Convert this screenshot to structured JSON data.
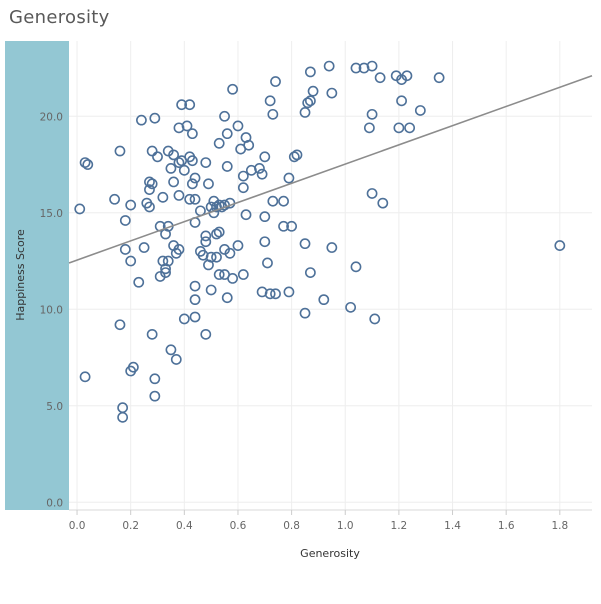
{
  "chart_title": "Generosity",
  "chart_data": {
    "type": "scatter",
    "title": "Generosity",
    "xlabel": "Generosity",
    "ylabel": "Happiness Score",
    "xlim": [
      -0.03,
      1.92
    ],
    "ylim": [
      -0.4,
      23.9
    ],
    "x_ticks": [
      0.0,
      0.2,
      0.4,
      0.6,
      0.8,
      1.0,
      1.2,
      1.4,
      1.6,
      1.8
    ],
    "x_tick_labels": [
      "0.0",
      "0.2",
      "0.4",
      "0.6",
      "0.8",
      "1.0",
      "1.2",
      "1.4",
      "1.6",
      "1.8"
    ],
    "y_ticks": [
      0,
      5,
      10,
      15,
      20
    ],
    "y_tick_labels": [
      "0.0",
      "5.0",
      "10.0",
      "15.0",
      "20.0"
    ],
    "grid": true,
    "point_color": "#4e7199",
    "trend_color": "#8c8c8c",
    "y_axis_band_color": "#93c7d3",
    "trendline": {
      "start": [
        -0.03,
        12.4
      ],
      "end": [
        1.92,
        22.1
      ]
    },
    "points": [
      [
        0.94,
        22.6
      ],
      [
        1.04,
        22.5
      ],
      [
        1.07,
        22.5
      ],
      [
        1.1,
        22.6
      ],
      [
        0.87,
        22.3
      ],
      [
        1.19,
        22.1
      ],
      [
        1.21,
        21.9
      ],
      [
        1.23,
        22.1
      ],
      [
        1.35,
        22.0
      ],
      [
        1.13,
        22.0
      ],
      [
        0.74,
        21.8
      ],
      [
        0.58,
        21.4
      ],
      [
        0.88,
        21.3
      ],
      [
        0.95,
        21.2
      ],
      [
        0.72,
        20.8
      ],
      [
        0.86,
        20.7
      ],
      [
        0.87,
        20.8
      ],
      [
        1.21,
        20.8
      ],
      [
        0.39,
        20.6
      ],
      [
        0.42,
        20.6
      ],
      [
        0.85,
        20.2
      ],
      [
        0.73,
        20.1
      ],
      [
        1.1,
        20.1
      ],
      [
        1.28,
        20.3
      ],
      [
        0.24,
        19.8
      ],
      [
        0.29,
        19.9
      ],
      [
        0.55,
        20.0
      ],
      [
        0.41,
        19.5
      ],
      [
        0.38,
        19.4
      ],
      [
        0.6,
        19.5
      ],
      [
        0.43,
        19.1
      ],
      [
        0.56,
        19.1
      ],
      [
        1.09,
        19.4
      ],
      [
        1.2,
        19.4
      ],
      [
        1.24,
        19.4
      ],
      [
        0.63,
        18.9
      ],
      [
        0.53,
        18.6
      ],
      [
        0.64,
        18.5
      ],
      [
        0.28,
        18.2
      ],
      [
        0.34,
        18.2
      ],
      [
        0.3,
        17.9
      ],
      [
        0.36,
        18.0
      ],
      [
        0.61,
        18.3
      ],
      [
        0.7,
        17.9
      ],
      [
        0.81,
        17.9
      ],
      [
        0.82,
        18.0
      ],
      [
        0.16,
        18.2
      ],
      [
        0.03,
        17.6
      ],
      [
        0.04,
        17.5
      ],
      [
        0.39,
        17.7
      ],
      [
        0.42,
        17.9
      ],
      [
        0.43,
        17.7
      ],
      [
        0.48,
        17.6
      ],
      [
        0.38,
        17.6
      ],
      [
        0.35,
        17.3
      ],
      [
        0.4,
        17.2
      ],
      [
        0.56,
        17.4
      ],
      [
        0.65,
        17.2
      ],
      [
        0.68,
        17.3
      ],
      [
        0.69,
        17.0
      ],
      [
        0.62,
        16.9
      ],
      [
        0.44,
        16.8
      ],
      [
        0.36,
        16.6
      ],
      [
        0.27,
        16.6
      ],
      [
        0.28,
        16.5
      ],
      [
        0.43,
        16.5
      ],
      [
        0.49,
        16.5
      ],
      [
        0.62,
        16.3
      ],
      [
        0.79,
        16.8
      ],
      [
        0.27,
        16.2
      ],
      [
        1.1,
        16.0
      ],
      [
        0.14,
        15.7
      ],
      [
        0.32,
        15.8
      ],
      [
        0.38,
        15.9
      ],
      [
        0.42,
        15.7
      ],
      [
        0.44,
        15.7
      ],
      [
        0.51,
        15.6
      ],
      [
        0.53,
        15.4
      ],
      [
        0.55,
        15.4
      ],
      [
        0.57,
        15.5
      ],
      [
        0.73,
        15.6
      ],
      [
        0.77,
        15.6
      ],
      [
        1.14,
        15.5
      ],
      [
        0.2,
        15.4
      ],
      [
        0.27,
        15.3
      ],
      [
        0.26,
        15.5
      ],
      [
        0.5,
        15.3
      ],
      [
        0.52,
        15.3
      ],
      [
        0.54,
        15.3
      ],
      [
        0.46,
        15.1
      ],
      [
        0.51,
        15.0
      ],
      [
        0.01,
        15.2
      ],
      [
        0.18,
        14.6
      ],
      [
        0.44,
        14.5
      ],
      [
        0.63,
        14.9
      ],
      [
        0.7,
        14.8
      ],
      [
        0.31,
        14.3
      ],
      [
        0.34,
        14.3
      ],
      [
        0.33,
        13.9
      ],
      [
        0.77,
        14.3
      ],
      [
        0.8,
        14.3
      ],
      [
        0.48,
        13.8
      ],
      [
        0.52,
        13.9
      ],
      [
        0.53,
        14.0
      ],
      [
        0.7,
        13.5
      ],
      [
        0.85,
        13.4
      ],
      [
        0.48,
        13.5
      ],
      [
        0.36,
        13.3
      ],
      [
        0.38,
        13.1
      ],
      [
        0.6,
        13.3
      ],
      [
        0.55,
        13.1
      ],
      [
        0.25,
        13.2
      ],
      [
        0.18,
        13.1
      ],
      [
        0.37,
        12.9
      ],
      [
        0.46,
        13.0
      ],
      [
        0.47,
        12.8
      ],
      [
        0.5,
        12.7
      ],
      [
        0.52,
        12.7
      ],
      [
        0.57,
        12.9
      ],
      [
        0.95,
        13.2
      ],
      [
        1.8,
        13.3
      ],
      [
        0.32,
        12.5
      ],
      [
        0.34,
        12.5
      ],
      [
        0.2,
        12.5
      ],
      [
        0.71,
        12.4
      ],
      [
        0.49,
        12.3
      ],
      [
        0.33,
        12.1
      ],
      [
        0.31,
        11.7
      ],
      [
        0.33,
        11.9
      ],
      [
        0.53,
        11.8
      ],
      [
        0.55,
        11.8
      ],
      [
        0.58,
        11.6
      ],
      [
        0.62,
        11.8
      ],
      [
        0.87,
        11.9
      ],
      [
        1.04,
        12.2
      ],
      [
        0.23,
        11.4
      ],
      [
        0.5,
        11.0
      ],
      [
        0.44,
        11.2
      ],
      [
        0.69,
        10.9
      ],
      [
        0.72,
        10.8
      ],
      [
        0.74,
        10.8
      ],
      [
        0.79,
        10.9
      ],
      [
        0.56,
        10.6
      ],
      [
        0.44,
        10.5
      ],
      [
        0.92,
        10.5
      ],
      [
        1.02,
        10.1
      ],
      [
        0.85,
        9.8
      ],
      [
        0.44,
        9.6
      ],
      [
        0.4,
        9.5
      ],
      [
        1.11,
        9.5
      ],
      [
        0.16,
        9.2
      ],
      [
        0.28,
        8.7
      ],
      [
        0.48,
        8.7
      ],
      [
        0.35,
        7.9
      ],
      [
        0.37,
        7.4
      ],
      [
        0.21,
        7.0
      ],
      [
        0.2,
        6.8
      ],
      [
        0.03,
        6.5
      ],
      [
        0.29,
        6.4
      ],
      [
        0.17,
        4.9
      ],
      [
        0.29,
        5.5
      ],
      [
        0.17,
        4.4
      ]
    ]
  }
}
